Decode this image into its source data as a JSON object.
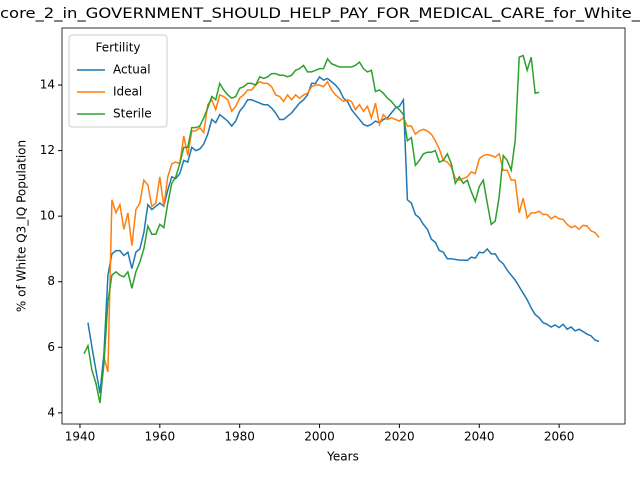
{
  "chart_data": {
    "type": "line",
    "title": "core_2_in_GOVERNMENT_SHOULD_HELP_PAY_FOR_MEDICAL_CARE_for_White_",
    "x_label": "Years",
    "y_label": "% of White Q3_IQ Population",
    "legend_title": "Fertility",
    "legend": "upper left",
    "grid": false,
    "xlim": [
      1935.5,
      2076.5
    ],
    "ylim": [
      3.66,
      15.74
    ],
    "xticks": [
      1940,
      1960,
      1980,
      2000,
      2020,
      2040,
      2060
    ],
    "yticks": [
      4,
      6,
      8,
      10,
      12,
      14
    ],
    "x": [
      1941,
      1942,
      1943,
      1944,
      1945,
      1946,
      1947,
      1948,
      1949,
      1950,
      1951,
      1952,
      1953,
      1954,
      1955,
      1956,
      1957,
      1958,
      1959,
      1960,
      1961,
      1962,
      1963,
      1964,
      1965,
      1966,
      1967,
      1968,
      1969,
      1970,
      1971,
      1972,
      1973,
      1974,
      1975,
      1976,
      1977,
      1978,
      1979,
      1980,
      1981,
      1982,
      1983,
      1984,
      1985,
      1986,
      1987,
      1988,
      1989,
      1990,
      1991,
      1992,
      1993,
      1994,
      1995,
      1996,
      1997,
      1998,
      1999,
      2000,
      2001,
      2002,
      2003,
      2004,
      2005,
      2006,
      2007,
      2008,
      2009,
      2010,
      2011,
      2012,
      2013,
      2014,
      2015,
      2016,
      2017,
      2018,
      2019,
      2020,
      2021,
      2022,
      2023,
      2024,
      2025,
      2026,
      2027,
      2028,
      2029,
      2030,
      2031,
      2032,
      2033,
      2034,
      2035,
      2036,
      2037,
      2038,
      2039,
      2040,
      2041,
      2042,
      2043,
      2044,
      2045,
      2046,
      2047,
      2048,
      2049,
      2050,
      2051,
      2052,
      2053,
      2054,
      2055,
      2056,
      2057,
      2058,
      2059,
      2060,
      2061,
      2062,
      2063,
      2064,
      2065,
      2066,
      2067,
      2068,
      2069,
      2070
    ],
    "series": [
      {
        "name": "Actual",
        "color": "#1f77b4",
        "values": [
          null,
          6.75,
          6.0,
          5.3,
          4.6,
          5.8,
          8.2,
          8.85,
          8.95,
          8.95,
          8.8,
          8.9,
          8.4,
          8.9,
          9.0,
          9.5,
          10.35,
          10.2,
          10.3,
          10.4,
          10.3,
          10.8,
          11.2,
          11.15,
          11.3,
          11.7,
          11.65,
          12.1,
          12.0,
          12.05,
          12.2,
          12.5,
          12.95,
          12.85,
          13.1,
          13.0,
          12.9,
          12.75,
          12.9,
          13.2,
          13.35,
          13.55,
          13.55,
          13.5,
          13.45,
          13.4,
          13.4,
          13.3,
          13.15,
          12.95,
          12.95,
          13.05,
          13.15,
          13.3,
          13.45,
          13.55,
          13.7,
          14.05,
          14.05,
          14.25,
          14.15,
          14.2,
          14.1,
          14.0,
          13.85,
          13.6,
          13.5,
          13.25,
          13.1,
          12.95,
          12.8,
          12.75,
          12.8,
          12.9,
          12.85,
          12.95,
          13.0,
          13.15,
          13.3,
          13.35,
          13.55,
          10.5,
          10.4,
          10.05,
          9.95,
          9.75,
          9.6,
          9.3,
          9.2,
          8.95,
          8.9,
          8.7,
          8.7,
          8.68,
          8.66,
          8.66,
          8.65,
          8.75,
          8.72,
          8.9,
          8.88,
          9.0,
          8.85,
          8.85,
          8.65,
          8.55,
          8.35,
          8.2,
          8.05,
          7.85,
          7.65,
          7.45,
          7.2,
          7.0,
          6.9,
          6.75,
          6.7,
          6.62,
          6.68,
          6.6,
          6.7,
          6.55,
          6.62,
          6.5,
          6.55,
          6.48,
          6.4,
          6.35,
          6.22,
          6.18
        ]
      },
      {
        "name": "Ideal",
        "color": "#ff7f0e",
        "values": [
          null,
          null,
          null,
          null,
          null,
          5.7,
          5.25,
          10.5,
          10.1,
          10.35,
          9.6,
          10.1,
          9.1,
          10.2,
          10.4,
          11.1,
          10.95,
          10.3,
          10.4,
          11.2,
          10.3,
          11.2,
          11.6,
          11.65,
          11.6,
          12.45,
          11.85,
          12.6,
          12.6,
          12.7,
          12.55,
          13.4,
          13.55,
          13.25,
          13.7,
          13.65,
          13.55,
          13.2,
          13.35,
          13.6,
          13.7,
          13.85,
          13.85,
          14.0,
          14.1,
          14.05,
          14.05,
          13.95,
          13.7,
          13.65,
          13.5,
          13.7,
          13.55,
          13.7,
          13.6,
          13.7,
          13.75,
          13.95,
          14.0,
          14.0,
          13.95,
          14.1,
          13.85,
          13.7,
          13.6,
          13.5,
          13.55,
          13.5,
          13.25,
          13.4,
          13.2,
          13.35,
          13.0,
          13.45,
          12.8,
          13.1,
          12.95,
          13.0,
          12.95,
          12.9,
          13.0,
          12.75,
          12.75,
          12.5,
          12.6,
          12.65,
          12.6,
          12.5,
          12.3,
          12.05,
          11.7,
          11.65,
          11.5,
          11.15,
          11.1,
          11.15,
          11.2,
          11.35,
          11.3,
          11.75,
          11.85,
          11.88,
          11.85,
          11.8,
          11.9,
          11.4,
          11.4,
          11.1,
          11.1,
          10.1,
          10.55,
          9.95,
          10.1,
          10.1,
          10.15,
          10.05,
          10.05,
          9.92,
          10.0,
          9.92,
          9.9,
          9.75,
          9.65,
          9.7,
          9.6,
          9.72,
          9.7,
          9.55,
          9.5,
          9.35
        ]
      },
      {
        "name": "Sterile",
        "color": "#2ca02c",
        "values": [
          5.8,
          6.05,
          5.3,
          4.9,
          4.3,
          5.5,
          7.4,
          8.2,
          8.3,
          8.2,
          8.15,
          8.3,
          7.8,
          8.3,
          8.6,
          9.0,
          9.7,
          9.45,
          9.45,
          9.75,
          9.65,
          10.4,
          11.0,
          11.2,
          11.6,
          12.1,
          12.1,
          12.7,
          12.7,
          12.75,
          13.0,
          13.3,
          13.65,
          13.55,
          14.05,
          13.85,
          13.7,
          13.6,
          13.65,
          13.9,
          13.95,
          14.05,
          14.05,
          14.0,
          14.25,
          14.2,
          14.25,
          14.35,
          14.35,
          14.3,
          14.3,
          14.25,
          14.3,
          14.45,
          14.5,
          14.6,
          14.4,
          14.4,
          14.45,
          14.5,
          14.5,
          14.8,
          14.65,
          14.6,
          14.55,
          14.55,
          14.55,
          14.55,
          14.6,
          14.7,
          14.5,
          14.4,
          14.45,
          13.8,
          13.85,
          13.75,
          13.6,
          13.5,
          13.35,
          13.25,
          13.1,
          12.3,
          12.4,
          11.55,
          11.7,
          11.9,
          11.95,
          11.95,
          12.0,
          11.65,
          11.7,
          11.9,
          11.6,
          11.0,
          11.2,
          11.0,
          11.1,
          10.75,
          10.45,
          10.9,
          11.1,
          10.4,
          9.75,
          9.85,
          10.6,
          11.85,
          11.7,
          11.4,
          12.3,
          14.85,
          14.9,
          14.45,
          14.85,
          13.75,
          13.78,
          null,
          null,
          null,
          null,
          null,
          null,
          null,
          null,
          null,
          null,
          null,
          null,
          null,
          null,
          null
        ]
      }
    ]
  }
}
